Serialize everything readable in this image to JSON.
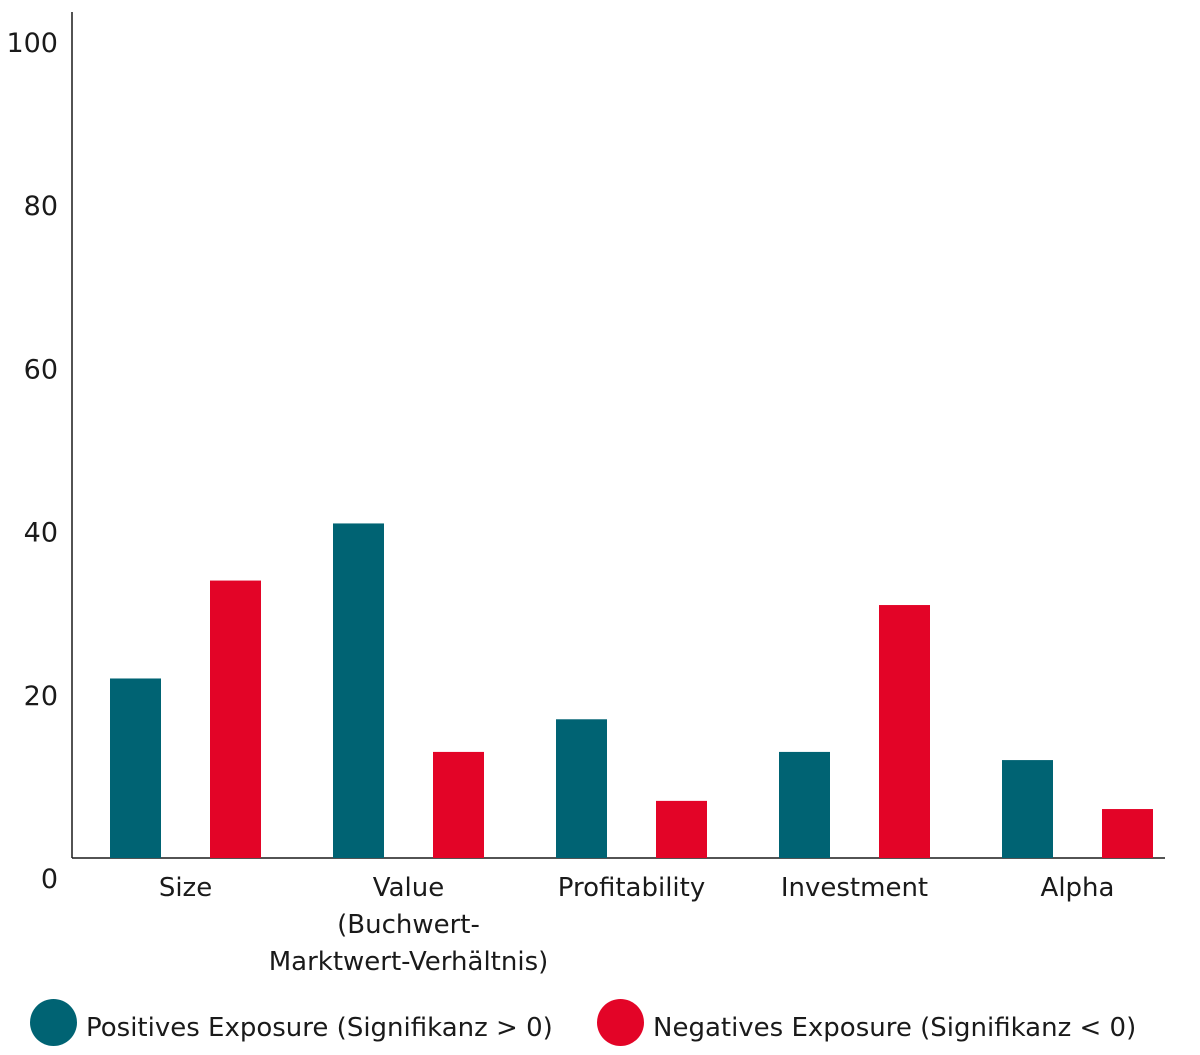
{
  "chart_data": {
    "type": "bar",
    "title": "",
    "xlabel": "",
    "ylabel": "",
    "ylim": [
      0,
      100
    ],
    "yticks": [
      0,
      20,
      40,
      60,
      80,
      100
    ],
    "grid": false,
    "legend_position": "bottom-left",
    "categories": [
      [
        "Size"
      ],
      [
        "Value",
        "(Buchwert-",
        "Marktwert-Verhältnis)"
      ],
      [
        "Profitability"
      ],
      [
        "Investment"
      ],
      [
        "Alpha"
      ]
    ],
    "series": [
      {
        "name": "Positives Exposure (Signifikanz > 0)",
        "color": "#006373",
        "values": [
          22,
          41,
          17,
          13,
          12
        ]
      },
      {
        "name": "Negatives Exposure (Signifikanz < 0)",
        "color": "#e30427",
        "values": [
          34,
          13,
          7,
          31,
          6
        ]
      }
    ]
  }
}
